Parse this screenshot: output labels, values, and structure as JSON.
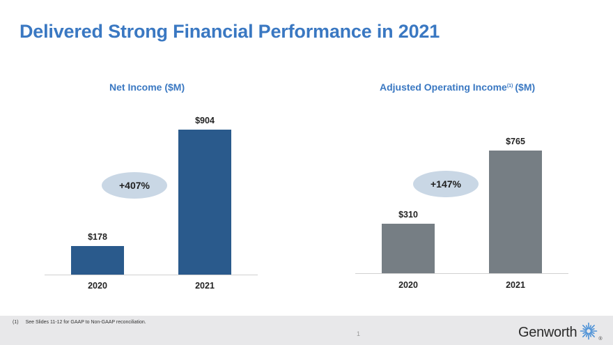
{
  "slide": {
    "title": "Delivered Strong Financial Performance in 2021",
    "page_number": "1"
  },
  "footnote": {
    "number": "(1)",
    "text": "See Slides 11-12 for GAAP to Non-GAAP reconciliation."
  },
  "brand": {
    "name": "Genworth",
    "registered": "®",
    "colors": {
      "title": "#3a78c2",
      "logo": "#4a90d6"
    }
  },
  "chart_data": [
    {
      "type": "bar",
      "title": "Net Income ($M)",
      "categories": [
        "2020",
        "2021"
      ],
      "values": [
        178,
        904
      ],
      "value_labels": [
        "$178",
        "$904"
      ],
      "ylim": [
        0,
        904
      ],
      "color": "#2a5a8c",
      "callout": "+407%",
      "xlabel": "",
      "ylabel": ""
    },
    {
      "type": "bar",
      "title": "Adjusted Operating Income",
      "title_superscript": "(1)",
      "title_suffix": "($M)",
      "categories": [
        "2020",
        "2021"
      ],
      "values": [
        310,
        765
      ],
      "value_labels": [
        "$310",
        "$765"
      ],
      "ylim": [
        0,
        765
      ],
      "color": "#767e84",
      "callout": "+147%",
      "xlabel": "",
      "ylabel": ""
    }
  ]
}
